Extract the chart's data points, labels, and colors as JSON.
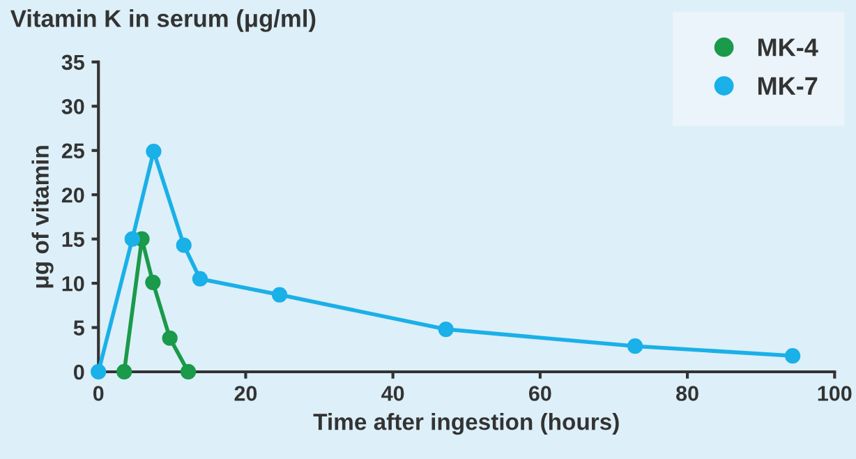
{
  "chart_data": {
    "type": "line",
    "title": "Vitamin K in serum (μg/ml)",
    "xlabel": "Time after ingestion (hours)",
    "ylabel": "μg of vitamin",
    "series": [
      {
        "name": "MK-4",
        "color": "#1a9a4a",
        "x": [
          3.5,
          5.9,
          7.4,
          9.7,
          12.2
        ],
        "values": [
          0,
          15,
          10.1,
          3.8,
          0
        ]
      },
      {
        "name": "MK-7",
        "color": "#1ab0e8",
        "x": [
          0,
          4.6,
          7.5,
          11.6,
          13.8,
          24.6,
          47.2,
          72.9,
          94.3
        ],
        "values": [
          0,
          15,
          24.9,
          14.3,
          10.5,
          8.7,
          4.8,
          2.9,
          1.8
        ]
      }
    ],
    "xlim": [
      0,
      100
    ],
    "xticks": [
      0,
      20,
      40,
      60,
      80,
      100
    ],
    "ylim": [
      0,
      35
    ],
    "yticks": [
      0,
      5,
      10,
      15,
      20,
      25,
      30,
      35
    ],
    "marker": "circle",
    "line_style": "solid",
    "grid": false,
    "legend": "top right"
  }
}
